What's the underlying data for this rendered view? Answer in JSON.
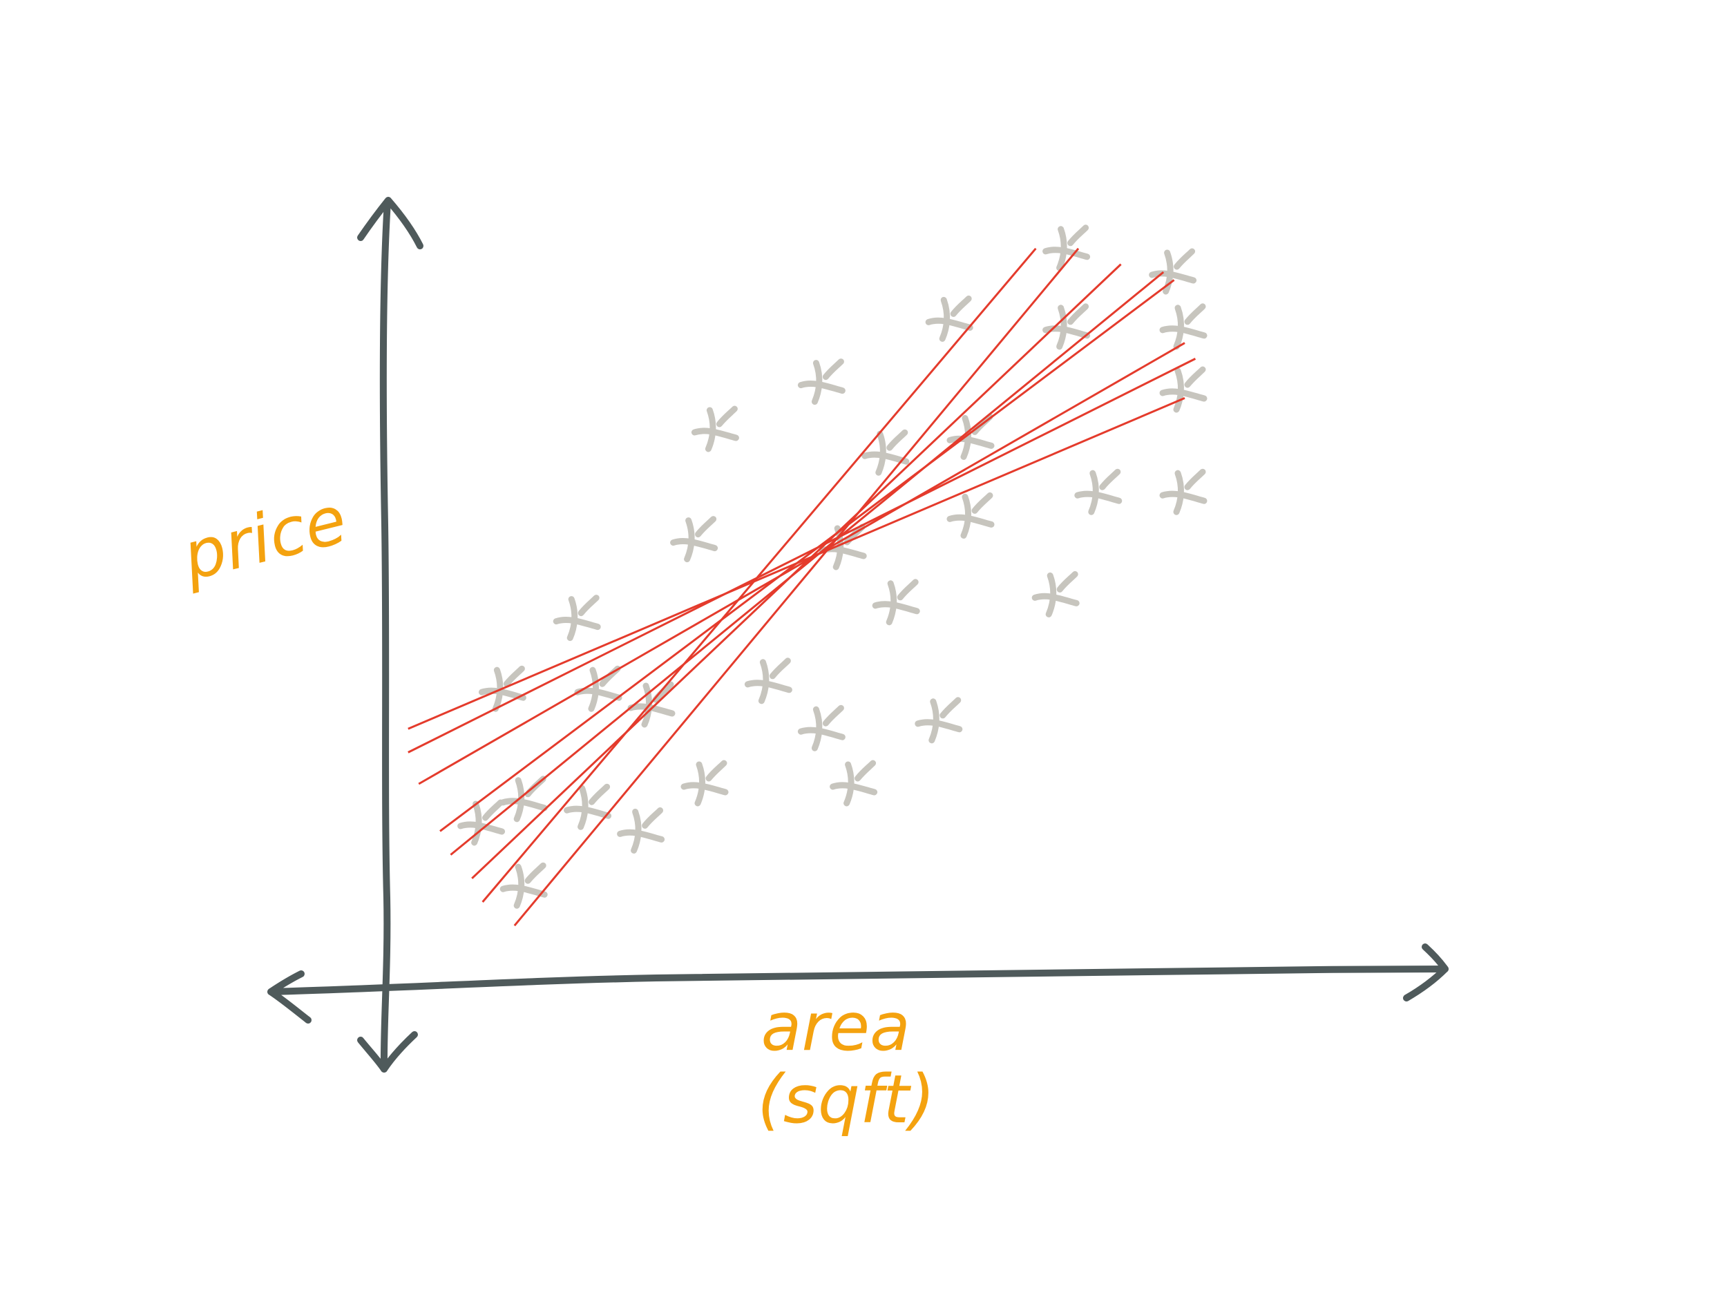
{
  "chart_data": {
    "type": "scatter",
    "style": "hand-drawn sketch",
    "xlabel": "area\n(sqft)",
    "ylabel": "price",
    "xlabel_lines": [
      "area",
      "(sqft)"
    ],
    "xlim": [
      0,
      100
    ],
    "ylim": [
      0,
      100
    ],
    "grid": false,
    "legend": "none",
    "x_axis_arrows": "both ends",
    "y_axis_arrows": "both ends",
    "points": [
      {
        "x": 9,
        "y": 20
      },
      {
        "x": 11,
        "y": 37
      },
      {
        "x": 13,
        "y": 23
      },
      {
        "x": 13,
        "y": 12
      },
      {
        "x": 18,
        "y": 46
      },
      {
        "x": 20,
        "y": 37
      },
      {
        "x": 19,
        "y": 22
      },
      {
        "x": 24,
        "y": 19
      },
      {
        "x": 25,
        "y": 35
      },
      {
        "x": 29,
        "y": 56
      },
      {
        "x": 31,
        "y": 70
      },
      {
        "x": 30,
        "y": 25
      },
      {
        "x": 36,
        "y": 38
      },
      {
        "x": 41,
        "y": 32
      },
      {
        "x": 41,
        "y": 76
      },
      {
        "x": 43,
        "y": 55
      },
      {
        "x": 44,
        "y": 25
      },
      {
        "x": 47,
        "y": 67
      },
      {
        "x": 48,
        "y": 48
      },
      {
        "x": 53,
        "y": 84
      },
      {
        "x": 52,
        "y": 33
      },
      {
        "x": 55,
        "y": 69
      },
      {
        "x": 55,
        "y": 59
      },
      {
        "x": 63,
        "y": 49
      },
      {
        "x": 64,
        "y": 93
      },
      {
        "x": 64,
        "y": 83
      },
      {
        "x": 67,
        "y": 62
      },
      {
        "x": 74,
        "y": 90
      },
      {
        "x": 75,
        "y": 83
      },
      {
        "x": 75,
        "y": 75
      },
      {
        "x": 75,
        "y": 62
      }
    ],
    "lines": [
      {
        "x": [
          12,
          65
        ],
        "y": [
          7,
          93
        ]
      },
      {
        "x": [
          9,
          61
        ],
        "y": [
          10,
          93
        ]
      },
      {
        "x": [
          8,
          69
        ],
        "y": [
          13,
          91
        ]
      },
      {
        "x": [
          6,
          73
        ],
        "y": [
          16,
          90
        ]
      },
      {
        "x": [
          5,
          74
        ],
        "y": [
          19,
          89
        ]
      },
      {
        "x": [
          3,
          75
        ],
        "y": [
          25,
          81
        ]
      },
      {
        "x": [
          2,
          76
        ],
        "y": [
          29,
          79
        ]
      },
      {
        "x": [
          2,
          75
        ],
        "y": [
          32,
          74
        ]
      }
    ]
  }
}
